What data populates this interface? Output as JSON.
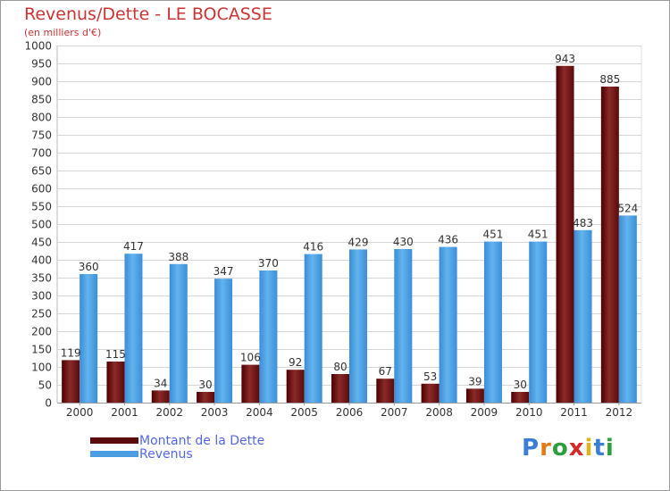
{
  "title": "Revenus/Dette - LE BOCASSE",
  "subtitle": "(en milliers d'€)",
  "logo_text": "Proxiti",
  "colors": {
    "dette": "#7a1a1a",
    "revenus": "#4a9de0",
    "grid": "#d6d6d6",
    "title": "#cc3333"
  },
  "chart_data": {
    "type": "bar",
    "title": "Revenus/Dette - LE BOCASSE",
    "subtitle": "(en milliers d'€)",
    "categories": [
      "2000",
      "2001",
      "2002",
      "2003",
      "2004",
      "2005",
      "2006",
      "2007",
      "2008",
      "2009",
      "2010",
      "2011",
      "2012"
    ],
    "series": [
      {
        "name": "Montant de la Dette",
        "values": [
          119,
          115,
          34,
          30,
          106,
          92,
          80,
          67,
          53,
          39,
          30,
          943,
          885
        ]
      },
      {
        "name": "Revenus",
        "values": [
          360,
          417,
          388,
          347,
          370,
          416,
          429,
          430,
          436,
          451,
          451,
          483,
          524
        ]
      }
    ],
    "ylim": [
      0,
      1000
    ],
    "ytick_step": 50,
    "grid": true,
    "legend_position": "bottom-left"
  }
}
